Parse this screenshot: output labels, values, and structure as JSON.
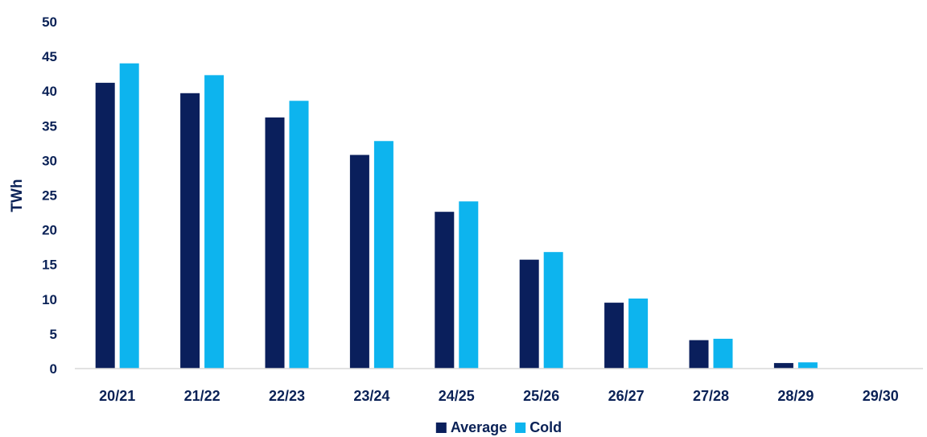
{
  "chart_data": {
    "type": "bar",
    "title": "",
    "xlabel": "",
    "ylabel": "TWh",
    "ylim": [
      0,
      50
    ],
    "yticks": [
      0,
      5,
      10,
      15,
      20,
      25,
      30,
      35,
      40,
      45,
      50
    ],
    "categories": [
      "20/21",
      "21/22",
      "22/23",
      "23/24",
      "24/25",
      "25/26",
      "26/27",
      "27/28",
      "28/29",
      "29/30"
    ],
    "series": [
      {
        "name": "Average",
        "color": "#0a1f5c",
        "values": [
          41.2,
          39.7,
          36.2,
          30.8,
          22.6,
          15.7,
          9.5,
          4.1,
          0.8,
          0
        ]
      },
      {
        "name": "Cold",
        "color": "#0db4ee",
        "values": [
          44.0,
          42.3,
          38.6,
          32.8,
          24.1,
          16.8,
          10.1,
          4.3,
          0.9,
          0
        ]
      }
    ],
    "grid": false,
    "legend_position": "bottom-center"
  }
}
